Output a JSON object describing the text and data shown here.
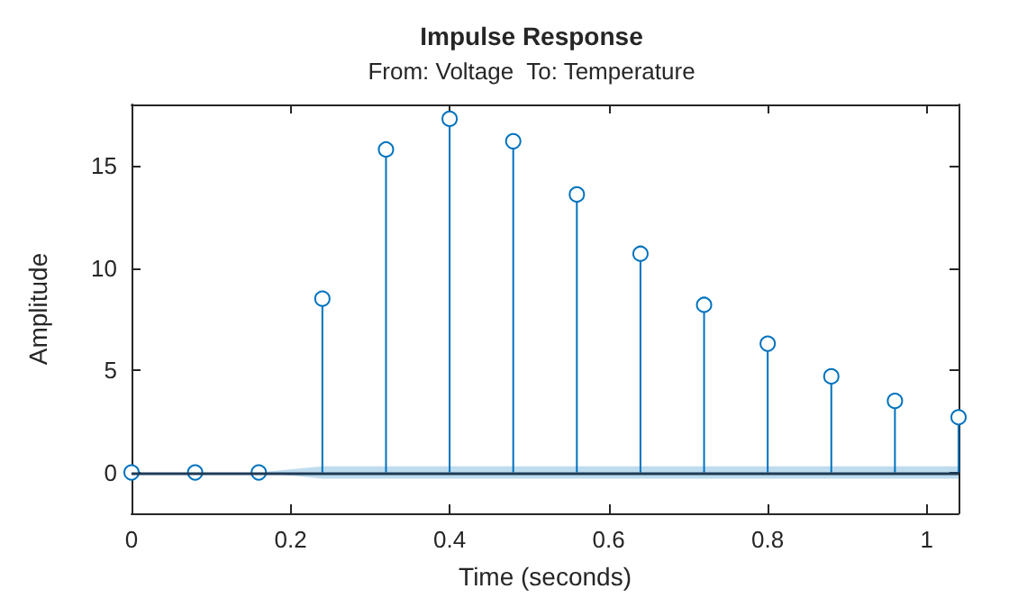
{
  "chart_data": {
    "type": "lollipop",
    "title": "Impulse Response",
    "subtitle": "From: Voltage  To: Temperature",
    "xlabel": "Time (seconds)",
    "ylabel": "Amplitude",
    "x": [
      0,
      0.08,
      0.16,
      0.24,
      0.32,
      0.4,
      0.48,
      0.56,
      0.64,
      0.72,
      0.8,
      0.88,
      0.96,
      1.04
    ],
    "series": [
      {
        "color": "#0072bd",
        "values": [
          0,
          0,
          0,
          8.5,
          15.8,
          17.3,
          16.2,
          13.6,
          10.7,
          8.2,
          6.3,
          4.7,
          3.5,
          2.7
        ],
        "lower": [
          0,
          0,
          0,
          -0.3,
          -0.3,
          -0.3,
          -0.3,
          -0.3,
          -0.3,
          -0.3,
          -0.3,
          -0.3,
          -0.3,
          -0.3
        ],
        "upper": [
          0,
          0,
          0,
          0.3,
          0.3,
          0.3,
          0.3,
          0.3,
          0.3,
          0.3,
          0.3,
          0.3,
          0.3,
          0.3
        ]
      }
    ],
    "xlim": [
      0,
      1.04
    ],
    "xticks": [
      0,
      0.2,
      0.4,
      0.6,
      0.8,
      1
    ],
    "ylim": [
      -2,
      18
    ],
    "yticks": [
      0,
      5,
      10,
      15
    ],
    "ref_lines": [
      {
        "axis": "y",
        "value": 0,
        "color": "#1f3b57"
      }
    ],
    "grid": false,
    "marker": "circle"
  }
}
